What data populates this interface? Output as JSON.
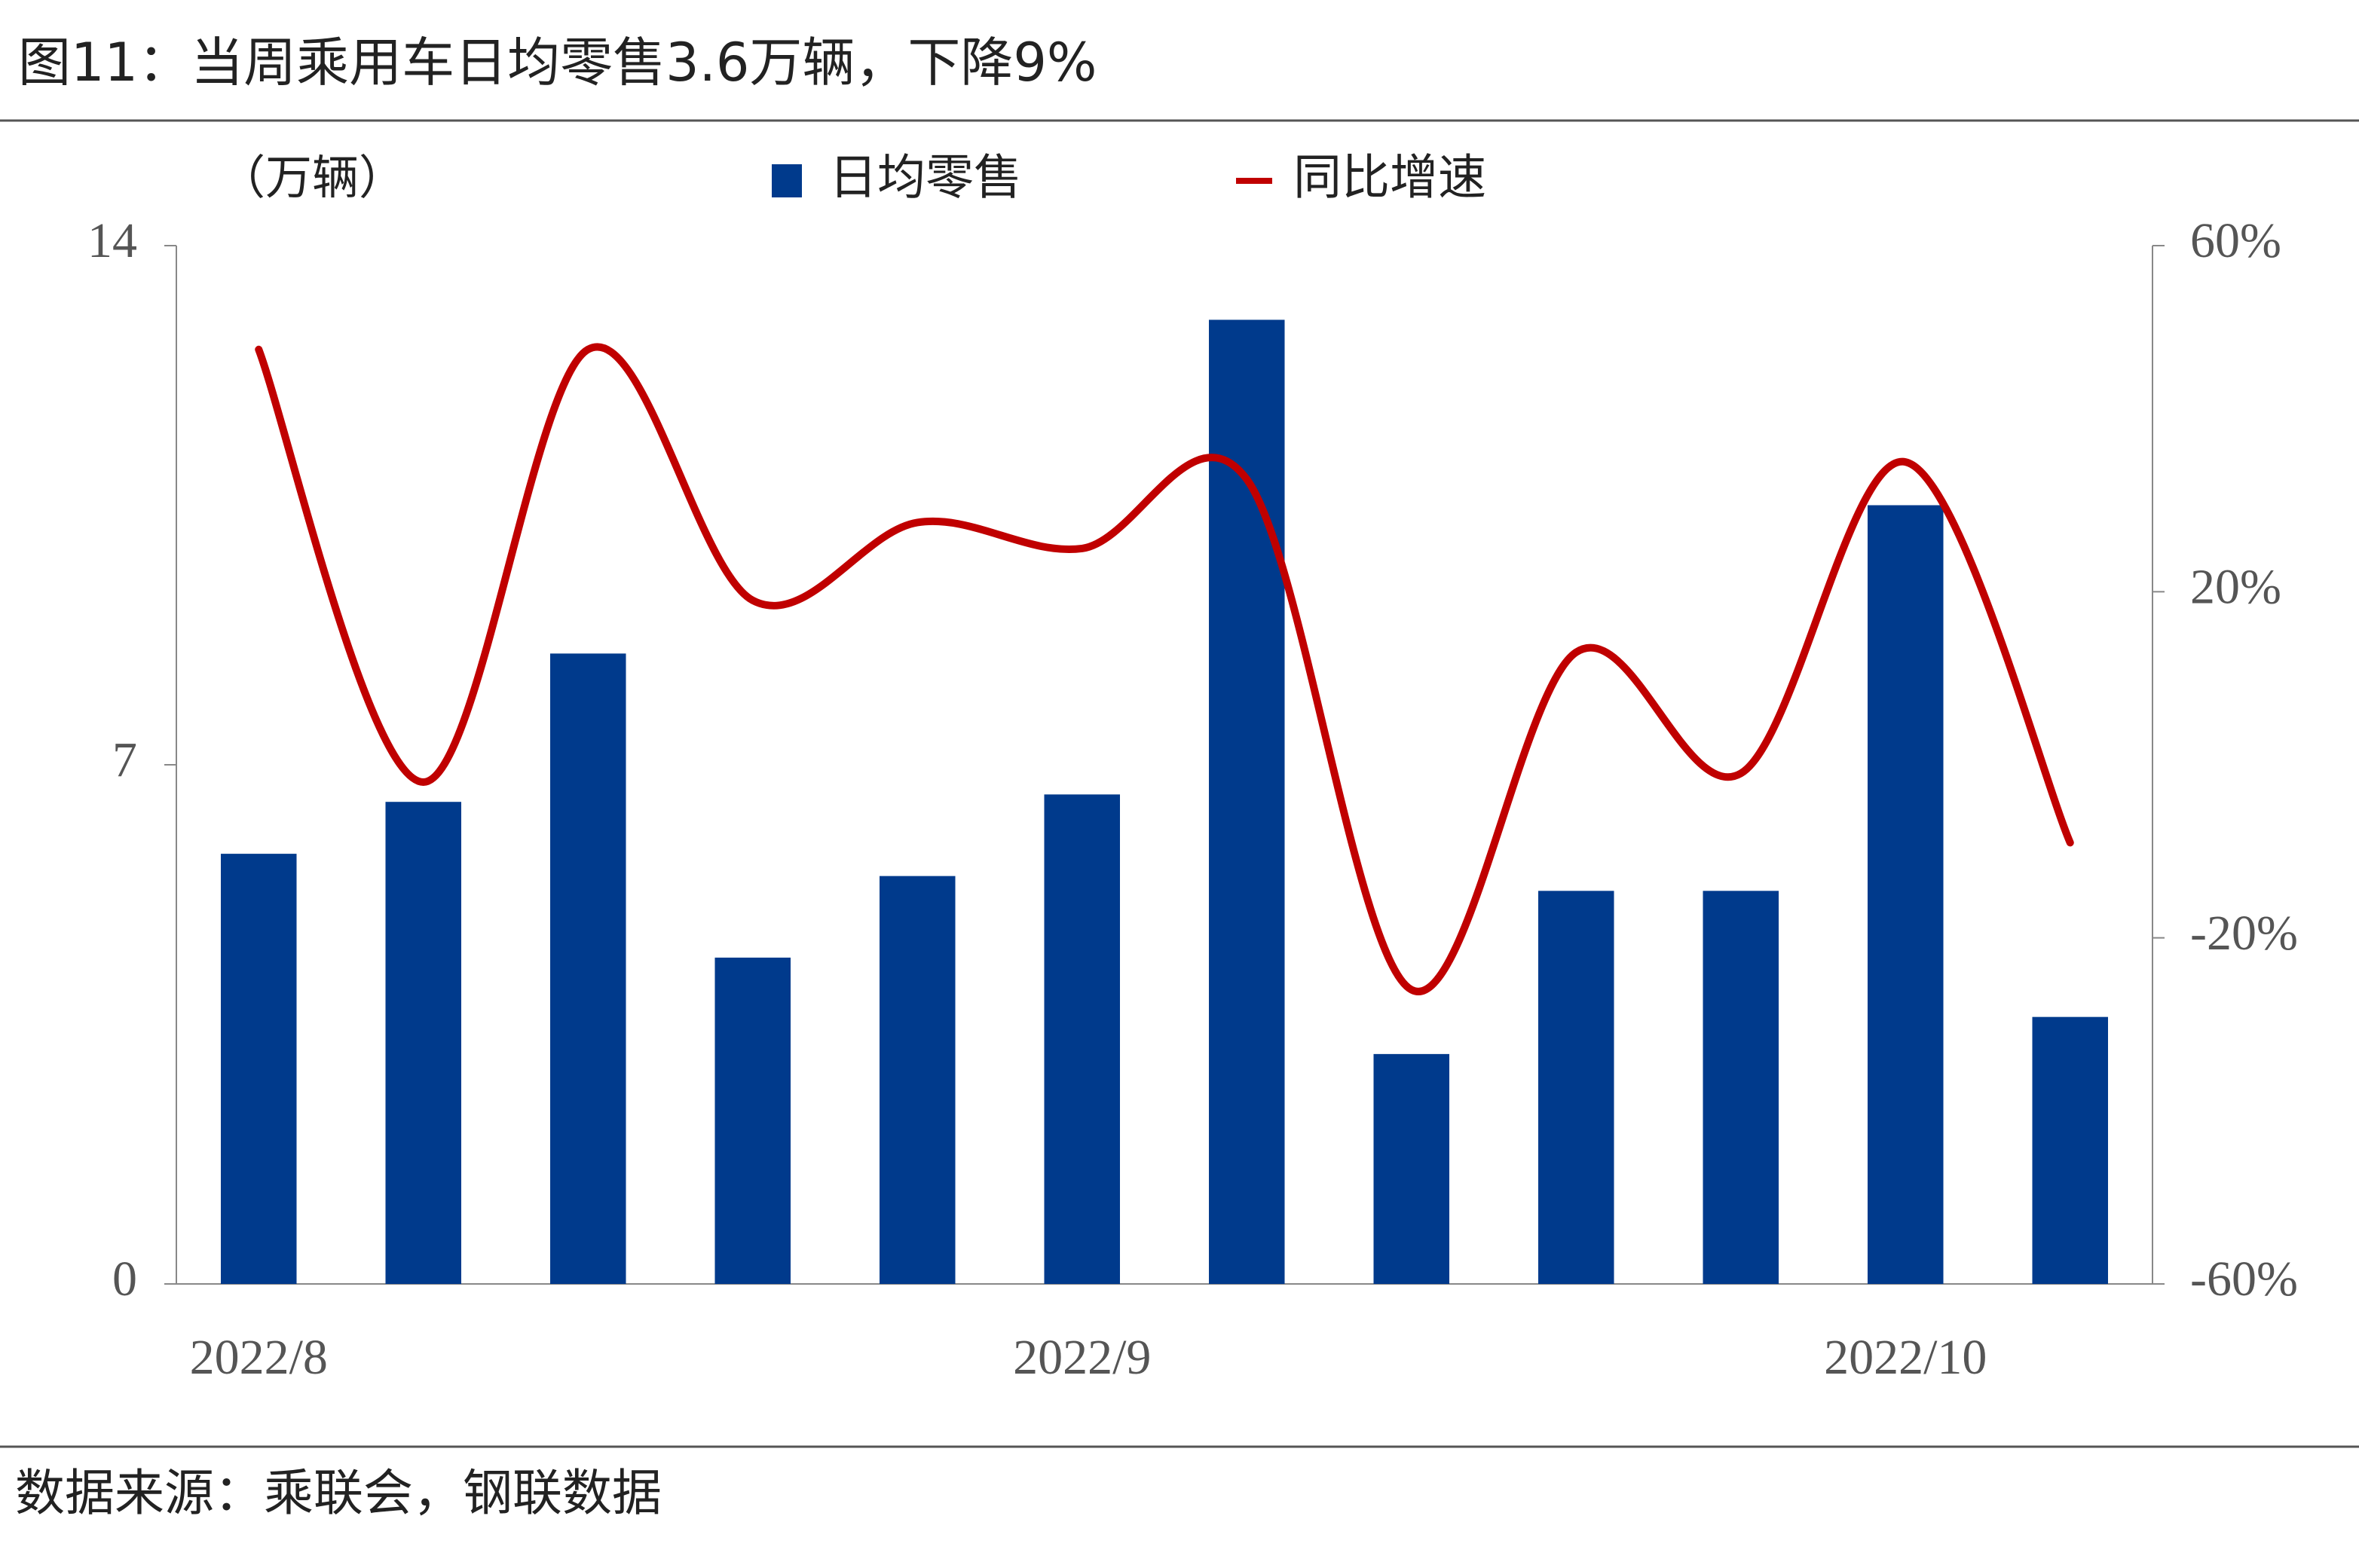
{
  "chart_data": {
    "type": "bar",
    "title": "图11：当周乘用车日均零售3.6万辆，下降9%",
    "y_label": "（万辆）",
    "source": "数据来源：乘联会，钢联数据",
    "categories": [
      "2022/8",
      null,
      null,
      null,
      null,
      "2022/9",
      null,
      null,
      null,
      null,
      "2022/10",
      null
    ],
    "series": [
      {
        "name": "日均零售",
        "color": "#003a8c",
        "values": [
          5.8,
          6.5,
          8.5,
          4.4,
          5.5,
          6.6,
          13.0,
          3.1,
          5.3,
          5.3,
          10.5,
          3.6
        ]
      },
      {
        "name": "同比增速",
        "color": "#c00000",
        "type": "line",
        "axis": "y2",
        "values": [
          48,
          -2,
          48,
          19,
          28,
          25,
          33,
          -26,
          13,
          -1,
          35,
          -9
        ]
      }
    ],
    "ylim": [
      0,
      14
    ],
    "yticks": [
      0,
      7,
      14
    ],
    "y2lim": [
      -60,
      60
    ],
    "y2ticks": [
      {
        "value": -60,
        "label": "-60%"
      },
      {
        "value": -20,
        "label": "-20%"
      },
      {
        "value": 20,
        "label": "20%"
      },
      {
        "value": 60,
        "label": "60%"
      }
    ]
  }
}
